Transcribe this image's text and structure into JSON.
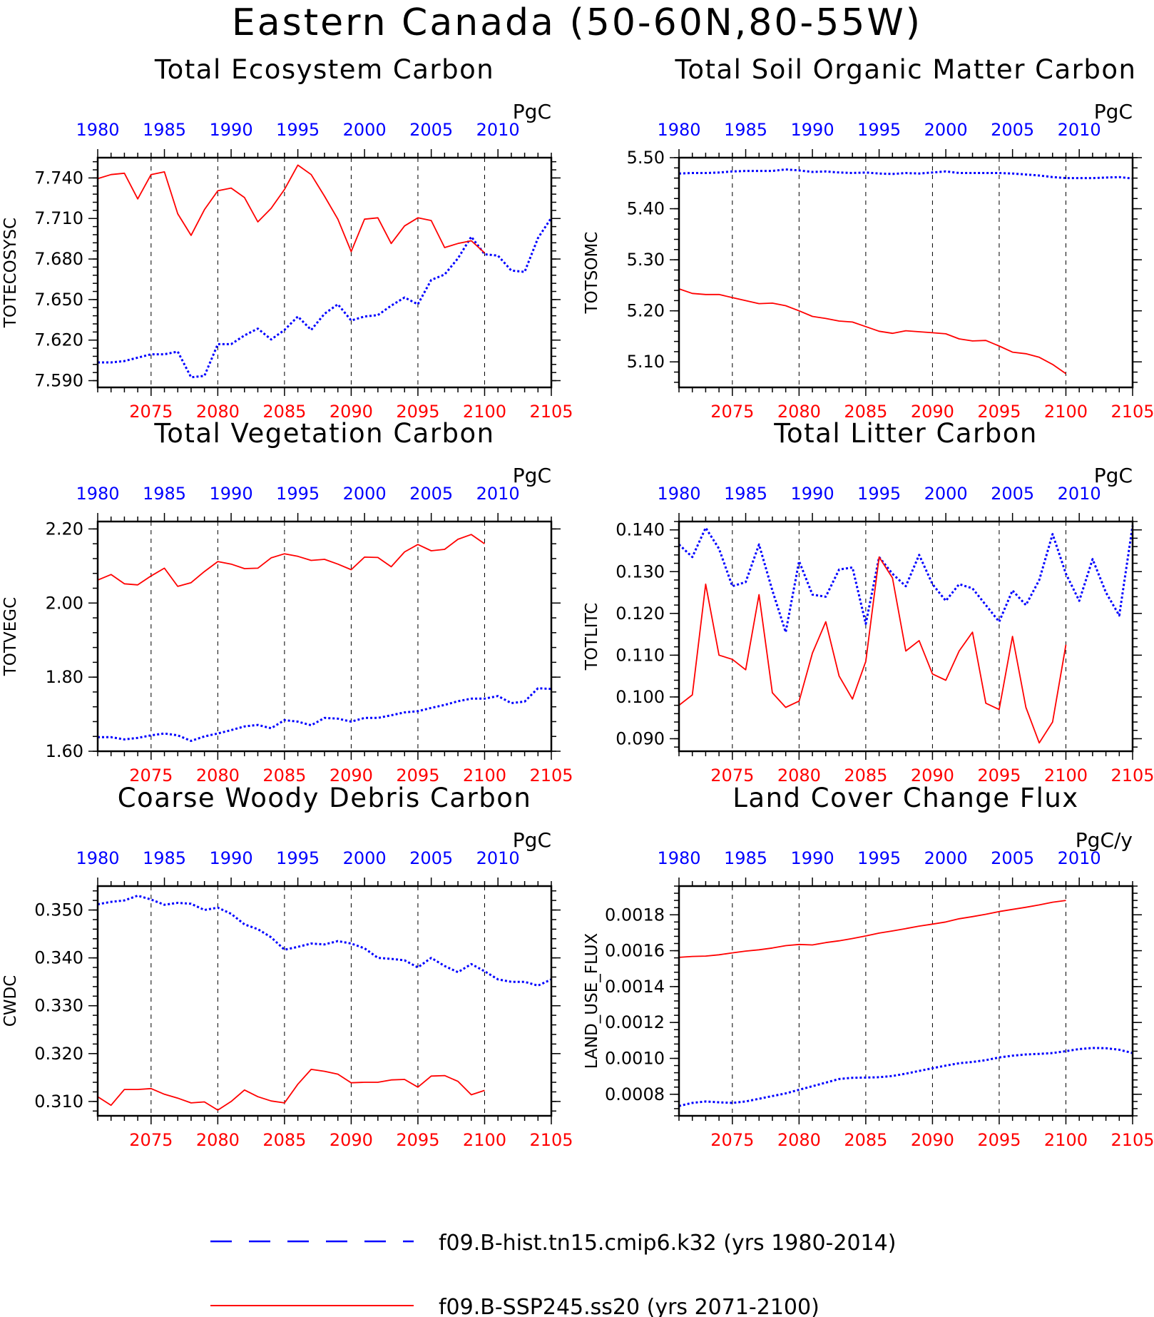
{
  "page": {
    "title": "Eastern Canada (50-60N,80-55W)"
  },
  "legend": {
    "items": [
      {
        "label": "f09.B-hist.tn15.cmip6.k32 (yrs 1980-2014)",
        "color": "#0000ff",
        "style": "dashed"
      },
      {
        "label": "f09.B-SSP245.ss20 (yrs 2071-2100)",
        "color": "#ff0000",
        "style": "solid"
      }
    ]
  },
  "colors": {
    "hist": "#0000ff",
    "ssp": "#ff0000"
  },
  "chart_data": [
    {
      "type": "line",
      "title": "Total Ecosystem Carbon",
      "ylabel": "TOTECOSYSC",
      "units": "PgC",
      "ylim": [
        7.585,
        7.755
      ],
      "yticks": [
        "7.590",
        "7.620",
        "7.650",
        "7.680",
        "7.710",
        "7.740"
      ],
      "ytick_values": [
        7.59,
        7.62,
        7.65,
        7.68,
        7.71,
        7.74
      ],
      "top_axis": {
        "ticks": [
          1980,
          1985,
          1990,
          1995,
          2000,
          2005,
          2010
        ],
        "xlim": [
          1980,
          2014
        ]
      },
      "bottom_axis": {
        "ticks": [
          2075,
          2080,
          2085,
          2090,
          2095,
          2100,
          2105
        ],
        "xlim": [
          2071,
          2105
        ]
      },
      "series": [
        {
          "name": "f09.B-hist.tn15.cmip6.k32",
          "axis": "top",
          "x_start": 1980,
          "values": [
            7.6035,
            7.6035,
            7.6045,
            7.607,
            7.6095,
            7.6095,
            7.6115,
            7.5925,
            7.5935,
            7.617,
            7.617,
            7.6235,
            7.6285,
            7.6205,
            7.6275,
            7.6375,
            7.6275,
            7.6395,
            7.6465,
            7.6345,
            7.6375,
            7.6385,
            7.6455,
            7.6515,
            7.6465,
            7.6645,
            7.6685,
            7.6805,
            7.6965,
            7.6835,
            7.6825,
            7.6715,
            7.6705,
            7.6955,
            7.7105
          ]
        },
        {
          "name": "f09.B-SSP245.ss20",
          "axis": "bottom",
          "x_start": 2071,
          "values": [
            7.7395,
            7.7425,
            7.7435,
            7.7245,
            7.7425,
            7.7445,
            7.7135,
            7.6975,
            7.7165,
            7.7305,
            7.7325,
            7.7255,
            7.7075,
            7.7175,
            7.7315,
            7.7495,
            7.7425,
            7.7265,
            7.7095,
            7.6855,
            7.7095,
            7.7105,
            7.6915,
            7.7045,
            7.7105,
            7.7085,
            7.6885,
            7.6915,
            7.6935,
            7.6845
          ]
        }
      ]
    },
    {
      "type": "line",
      "title": "Total Soil Organic Matter Carbon",
      "ylabel": "TOTSOMC",
      "units": "PgC",
      "ylim": [
        5.05,
        5.5
      ],
      "yticks": [
        "5.10",
        "5.20",
        "5.30",
        "5.40",
        "5.50"
      ],
      "ytick_values": [
        5.1,
        5.2,
        5.3,
        5.4,
        5.5
      ],
      "top_axis": {
        "ticks": [
          1980,
          1985,
          1990,
          1995,
          2000,
          2005,
          2010
        ],
        "xlim": [
          1980,
          2014
        ]
      },
      "bottom_axis": {
        "ticks": [
          2075,
          2080,
          2085,
          2090,
          2095,
          2100,
          2105
        ],
        "xlim": [
          2071,
          2105
        ]
      },
      "series": [
        {
          "name": "f09.B-hist.tn15.cmip6.k32",
          "axis": "top",
          "x_start": 1980,
          "values": [
            5.469,
            5.47,
            5.47,
            5.471,
            5.473,
            5.474,
            5.474,
            5.474,
            5.477,
            5.475,
            5.472,
            5.473,
            5.471,
            5.47,
            5.471,
            5.469,
            5.468,
            5.47,
            5.469,
            5.471,
            5.473,
            5.47,
            5.47,
            5.47,
            5.47,
            5.469,
            5.467,
            5.465,
            5.462,
            5.46,
            5.46,
            5.46,
            5.461,
            5.462,
            5.459
          ]
        },
        {
          "name": "f09.B-SSP245.ss20",
          "axis": "bottom",
          "x_start": 2071,
          "values": [
            5.243,
            5.234,
            5.232,
            5.232,
            5.226,
            5.22,
            5.214,
            5.215,
            5.21,
            5.2,
            5.189,
            5.185,
            5.18,
            5.178,
            5.169,
            5.16,
            5.156,
            5.161,
            5.159,
            5.157,
            5.155,
            5.145,
            5.141,
            5.142,
            5.131,
            5.119,
            5.116,
            5.109,
            5.095,
            5.077
          ]
        }
      ]
    },
    {
      "type": "line",
      "title": "Total Vegetation Carbon",
      "ylabel": "TOTVEGC",
      "units": "PgC",
      "ylim": [
        1.6,
        2.22
      ],
      "yticks": [
        "1.60",
        "1.80",
        "2.00",
        "2.20"
      ],
      "ytick_values": [
        1.6,
        1.8,
        2.0,
        2.2
      ],
      "top_axis": {
        "ticks": [
          1980,
          1985,
          1990,
          1995,
          2000,
          2005,
          2010
        ],
        "xlim": [
          1980,
          2014
        ]
      },
      "bottom_axis": {
        "ticks": [
          2075,
          2080,
          2085,
          2090,
          2095,
          2100,
          2105
        ],
        "xlim": [
          2071,
          2105
        ]
      },
      "series": [
        {
          "name": "f09.B-hist.tn15.cmip6.k32",
          "axis": "top",
          "x_start": 1980,
          "values": [
            1.638,
            1.638,
            1.632,
            1.636,
            1.643,
            1.648,
            1.643,
            1.628,
            1.64,
            1.648,
            1.657,
            1.667,
            1.671,
            1.662,
            1.684,
            1.68,
            1.67,
            1.69,
            1.688,
            1.68,
            1.69,
            1.69,
            1.697,
            1.705,
            1.708,
            1.717,
            1.725,
            1.735,
            1.742,
            1.742,
            1.749,
            1.73,
            1.734,
            1.77,
            1.768
          ]
        },
        {
          "name": "f09.B-SSP245.ss20",
          "axis": "bottom",
          "x_start": 2071,
          "values": [
            2.062,
            2.077,
            2.052,
            2.049,
            2.073,
            2.094,
            2.045,
            2.055,
            2.085,
            2.112,
            2.105,
            2.093,
            2.094,
            2.122,
            2.133,
            2.126,
            2.115,
            2.118,
            2.105,
            2.09,
            2.124,
            2.123,
            2.098,
            2.138,
            2.158,
            2.141,
            2.145,
            2.172,
            2.185,
            2.16
          ]
        }
      ]
    },
    {
      "type": "line",
      "title": "Total Litter Carbon",
      "ylabel": "TOTLITC",
      "units": "PgC",
      "ylim": [
        0.087,
        0.142
      ],
      "yticks": [
        "0.090",
        "0.100",
        "0.110",
        "0.120",
        "0.130",
        "0.140"
      ],
      "ytick_values": [
        0.09,
        0.1,
        0.11,
        0.12,
        0.13,
        0.14
      ],
      "top_axis": {
        "ticks": [
          1980,
          1985,
          1990,
          1995,
          2000,
          2005,
          2010
        ],
        "xlim": [
          1980,
          2014
        ]
      },
      "bottom_axis": {
        "ticks": [
          2075,
          2080,
          2085,
          2090,
          2095,
          2100,
          2105
        ],
        "xlim": [
          2071,
          2105
        ]
      },
      "series": [
        {
          "name": "f09.B-hist.tn15.cmip6.k32",
          "axis": "top",
          "x_start": 1980,
          "values": [
            0.1365,
            0.1335,
            0.1405,
            0.1355,
            0.1265,
            0.1275,
            0.1365,
            0.1255,
            0.1155,
            0.1325,
            0.1245,
            0.124,
            0.1305,
            0.131,
            0.1175,
            0.1335,
            0.1295,
            0.1265,
            0.134,
            0.127,
            0.123,
            0.127,
            0.126,
            0.122,
            0.118,
            0.1255,
            0.122,
            0.128,
            0.139,
            0.1295,
            0.123,
            0.133,
            0.125,
            0.1195,
            0.141
          ]
        },
        {
          "name": "f09.B-SSP245.ss20",
          "axis": "bottom",
          "x_start": 2071,
          "values": [
            0.098,
            0.1005,
            0.127,
            0.11,
            0.109,
            0.1065,
            0.1245,
            0.101,
            0.0975,
            0.099,
            0.1105,
            0.118,
            0.105,
            0.0995,
            0.1085,
            0.1335,
            0.1285,
            0.111,
            0.1135,
            0.1055,
            0.104,
            0.111,
            0.1155,
            0.0985,
            0.097,
            0.1145,
            0.0975,
            0.089,
            0.094,
            0.1125
          ]
        }
      ]
    },
    {
      "type": "line",
      "title": "Coarse Woody Debris Carbon",
      "ylabel": "CWDC",
      "units": "PgC",
      "ylim": [
        0.307,
        0.355
      ],
      "yticks": [
        "0.310",
        "0.320",
        "0.330",
        "0.340",
        "0.350"
      ],
      "ytick_values": [
        0.31,
        0.32,
        0.33,
        0.34,
        0.35
      ],
      "top_axis": {
        "ticks": [
          1980,
          1985,
          1990,
          1995,
          2000,
          2005,
          2010
        ],
        "xlim": [
          1980,
          2014
        ]
      },
      "bottom_axis": {
        "ticks": [
          2075,
          2080,
          2085,
          2090,
          2095,
          2100,
          2105
        ],
        "xlim": [
          2071,
          2105
        ]
      },
      "series": [
        {
          "name": "f09.B-hist.tn15.cmip6.k32",
          "axis": "top",
          "x_start": 1980,
          "values": [
            0.3512,
            0.3517,
            0.352,
            0.353,
            0.3522,
            0.3511,
            0.3515,
            0.3513,
            0.35,
            0.3505,
            0.3492,
            0.347,
            0.346,
            0.3443,
            0.3417,
            0.3423,
            0.343,
            0.3428,
            0.3435,
            0.343,
            0.342,
            0.34,
            0.3398,
            0.3395,
            0.338,
            0.34,
            0.3383,
            0.337,
            0.3387,
            0.3372,
            0.3355,
            0.335,
            0.335,
            0.3342,
            0.3355
          ]
        },
        {
          "name": "f09.B-SSP245.ss20",
          "axis": "bottom",
          "x_start": 2071,
          "values": [
            0.311,
            0.3092,
            0.3125,
            0.3125,
            0.3127,
            0.3115,
            0.3107,
            0.3097,
            0.3099,
            0.3082,
            0.31,
            0.3124,
            0.311,
            0.3101,
            0.3097,
            0.3136,
            0.3167,
            0.3163,
            0.3157,
            0.3139,
            0.314,
            0.314,
            0.3145,
            0.3146,
            0.313,
            0.3153,
            0.3154,
            0.3142,
            0.3114,
            0.3123
          ]
        }
      ]
    },
    {
      "type": "line",
      "title": "Land Cover Change Flux",
      "ylabel": "LAND_USE_FLUX",
      "units": "PgC/y",
      "ylim": [
        0.00068,
        0.00196
      ],
      "yticks": [
        "0.0008",
        "0.0010",
        "0.0012",
        "0.0014",
        "0.0016",
        "0.0018"
      ],
      "ytick_values": [
        0.0008,
        0.001,
        0.0012,
        0.0014,
        0.0016,
        0.0018
      ],
      "top_axis": {
        "ticks": [
          1980,
          1985,
          1990,
          1995,
          2000,
          2005,
          2010
        ],
        "xlim": [
          1980,
          2014
        ]
      },
      "bottom_axis": {
        "ticks": [
          2075,
          2080,
          2085,
          2090,
          2095,
          2100,
          2105
        ],
        "xlim": [
          2071,
          2105
        ]
      },
      "series": [
        {
          "name": "f09.B-hist.tn15.cmip6.k32",
          "axis": "top",
          "x_start": 1980,
          "values": [
            0.000735,
            0.000752,
            0.00076,
            0.000755,
            0.000752,
            0.00076,
            0.000775,
            0.00079,
            0.000805,
            0.000825,
            0.000845,
            0.000865,
            0.000885,
            0.000892,
            0.000893,
            0.000895,
            0.000902,
            0.000915,
            0.00093,
            0.000945,
            0.00096,
            0.000973,
            0.00098,
            0.00099,
            0.001005,
            0.001015,
            0.001022,
            0.001025,
            0.00103,
            0.00104,
            0.001052,
            0.001058,
            0.001057,
            0.001048,
            0.00103
          ]
        },
        {
          "name": "f09.B-SSP245.ss20",
          "axis": "bottom",
          "x_start": 2071,
          "values": [
            0.001563,
            0.001568,
            0.00157,
            0.001577,
            0.001588,
            0.001598,
            0.001605,
            0.001615,
            0.001628,
            0.001635,
            0.001632,
            0.001645,
            0.001655,
            0.001668,
            0.001682,
            0.001698,
            0.00171,
            0.001723,
            0.001737,
            0.001748,
            0.00176,
            0.001778,
            0.00179,
            0.001803,
            0.001818,
            0.00183,
            0.001842,
            0.001855,
            0.00187,
            0.00188
          ]
        }
      ]
    }
  ]
}
